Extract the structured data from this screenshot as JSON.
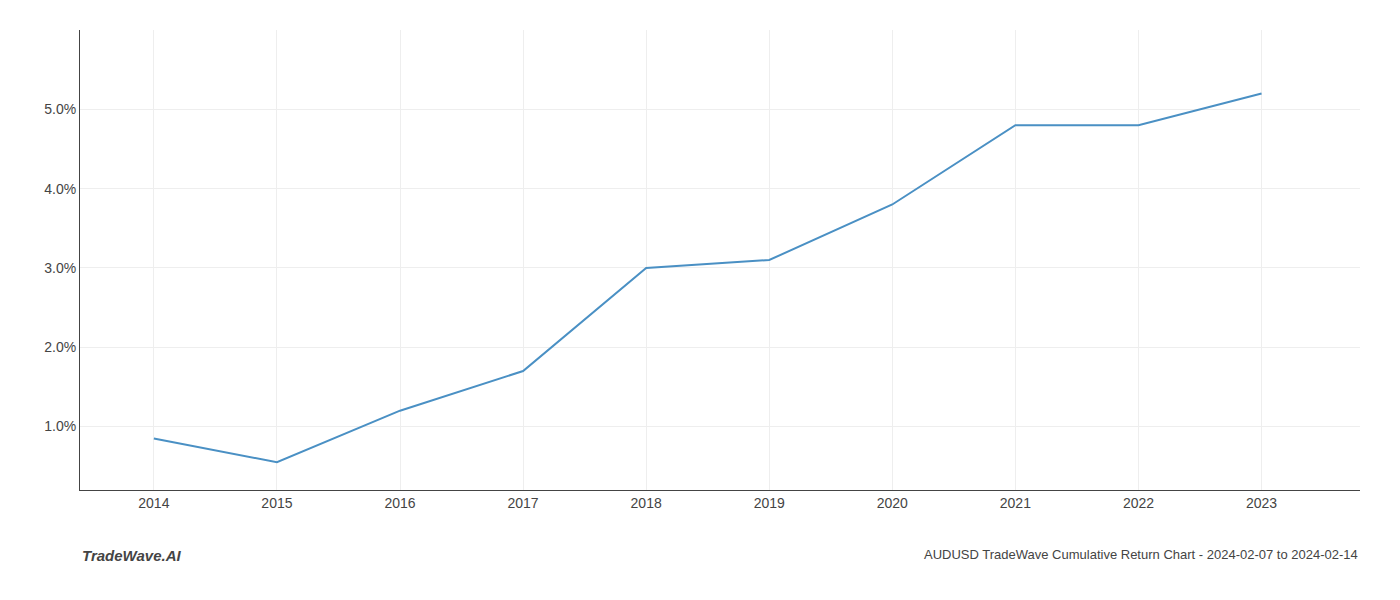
{
  "chart_data": {
    "type": "line",
    "title": "AUDUSD TradeWave Cumulative Return Chart - 2024-02-07 to 2024-02-14",
    "annotations": [
      "TradeWave.AI"
    ],
    "x": [
      2014,
      2015,
      2016,
      2017,
      2018,
      2019,
      2020,
      2021,
      2022,
      2023
    ],
    "values": [
      0.0085,
      0.0055,
      0.012,
      0.017,
      0.03,
      0.031,
      0.038,
      0.048,
      0.048,
      0.052
    ],
    "color": "#4a90c4",
    "xlim": [
      2013.4,
      2023.8
    ],
    "xticks": [
      2014,
      2015,
      2016,
      2017,
      2018,
      2019,
      2020,
      2021,
      2022,
      2023
    ],
    "ylim": [
      0.002,
      0.06
    ],
    "yticks": [
      {
        "value": 0.01,
        "label": "1.0%"
      },
      {
        "value": 0.02,
        "label": "2.0%"
      },
      {
        "value": 0.03,
        "label": "3.0%"
      },
      {
        "value": 0.04,
        "label": "4.0%"
      },
      {
        "value": 0.05,
        "label": "5.0%"
      }
    ],
    "grid": true
  }
}
